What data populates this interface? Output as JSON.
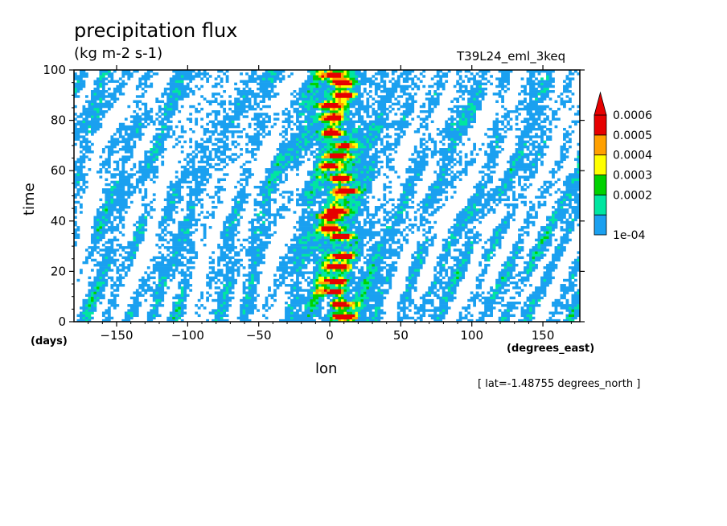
{
  "title": "precipitation flux",
  "units": "(kg m-2 s-1)",
  "run_name": "T39L24_eml_3keq",
  "lat_note": "[ lat=-1.48755 degrees_north ]",
  "chart_data": {
    "type": "heatmap",
    "title": "precipitation flux",
    "subtitle": "(kg m-2 s-1)",
    "xlabel": "lon",
    "x_units": "(degrees_east)",
    "ylabel": "time",
    "y_units": "(days)",
    "xlim": [
      -180,
      176
    ],
    "ylim": [
      0,
      100
    ],
    "x_ticks": [
      -150,
      -100,
      -50,
      0,
      50,
      100,
      150
    ],
    "y_ticks": [
      0,
      20,
      40,
      60,
      80,
      100
    ],
    "x_tick_labels": [
      "−150",
      "−100",
      "−50",
      "0",
      "50",
      "100",
      "150"
    ],
    "y_tick_labels": [
      "0",
      "20",
      "40",
      "60",
      "80",
      "100"
    ],
    "colorbar": {
      "levels": [
        0.0001,
        0.0002,
        0.0003,
        0.0004,
        0.0005,
        0.0006
      ],
      "labels": [
        "1e-04",
        "0.0002",
        "0.0003",
        "0.0004",
        "0.0005",
        "0.0006"
      ],
      "colors": [
        "#1aa0f0",
        "#00e6a0",
        "#00d200",
        "#ffff00",
        "#ffa000",
        "#e60000"
      ],
      "extend": "max",
      "placement": "right"
    },
    "features": {
      "convective_band_lon": 5,
      "high_precip_events_days": [
        2,
        7,
        12,
        16,
        22,
        26,
        34,
        37,
        42,
        44,
        52,
        57,
        62,
        66,
        70,
        75,
        81,
        86,
        90,
        95,
        98
      ]
    }
  }
}
